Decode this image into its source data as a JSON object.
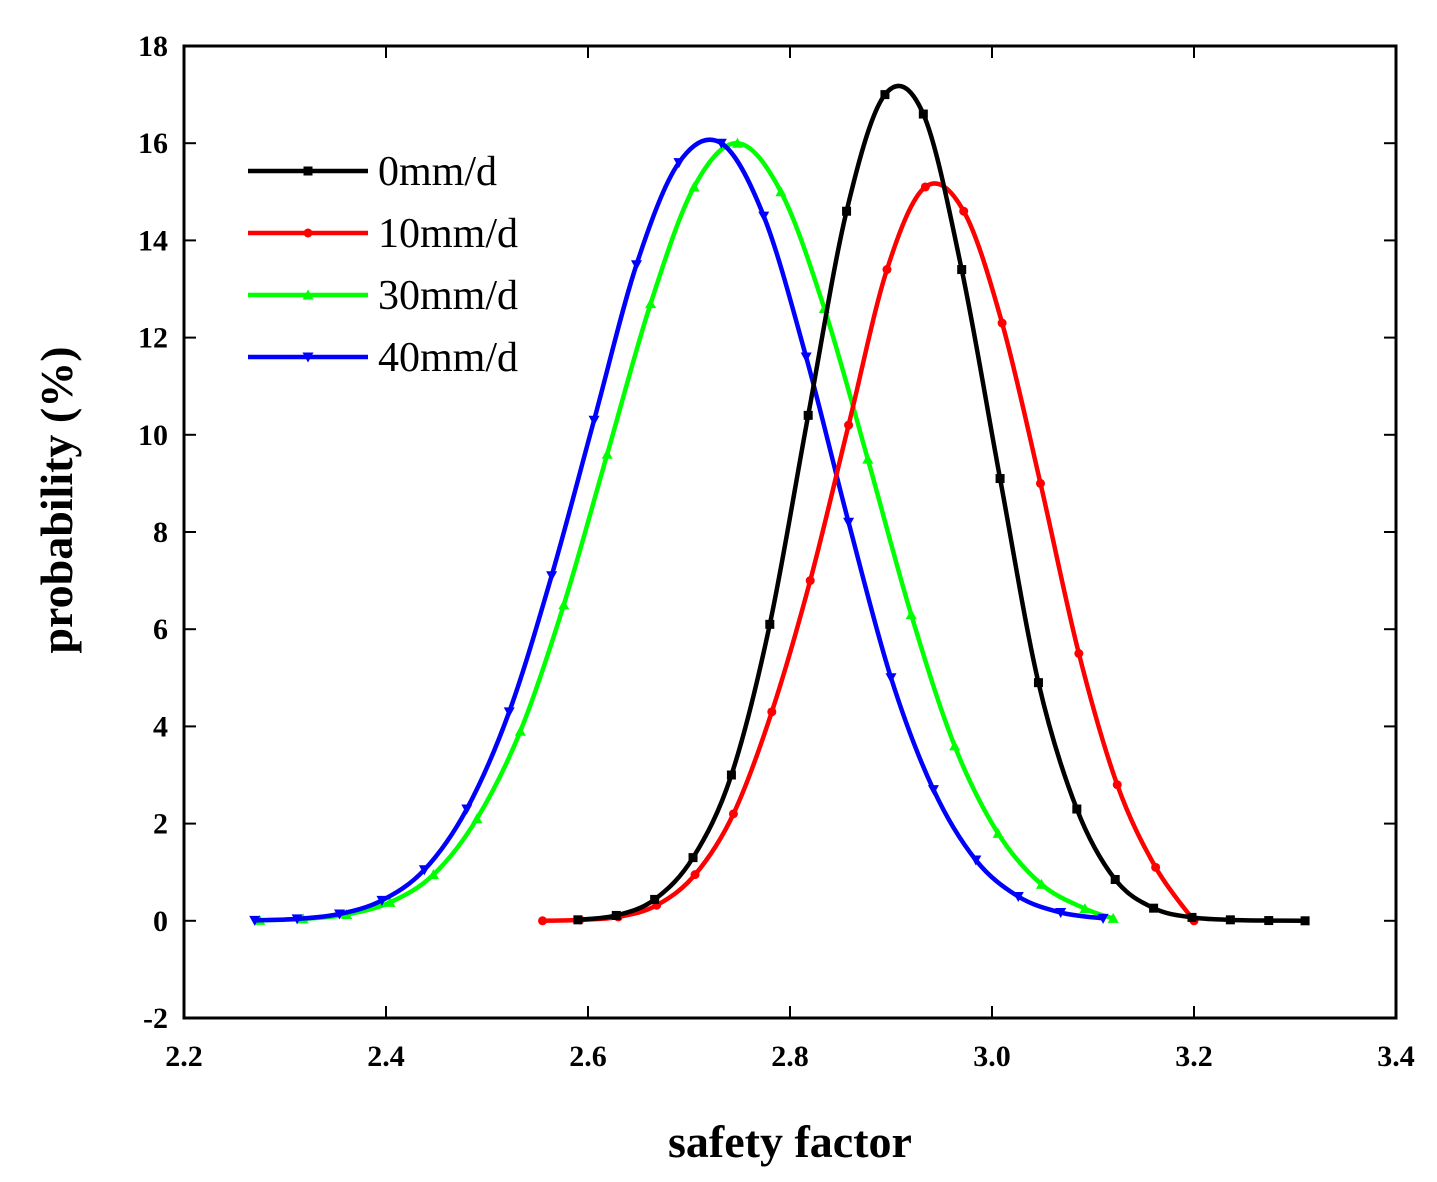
{
  "chart_data": {
    "type": "line",
    "title": "",
    "xlabel": "safety factor",
    "ylabel": "probability (%)",
    "xlim": [
      2.2,
      3.4
    ],
    "ylim": [
      -2,
      18
    ],
    "xticks": [
      2.2,
      2.4,
      2.6,
      2.8,
      3.0,
      3.2,
      3.4
    ],
    "xtick_labels": [
      "2.2",
      "2.4",
      "2.6",
      "2.8",
      "3.0",
      "3.2",
      "3.4"
    ],
    "yticks": [
      -2,
      0,
      2,
      4,
      6,
      8,
      10,
      12,
      14,
      16,
      18
    ],
    "ytick_labels": [
      "-2",
      "0",
      "2",
      "4",
      "6",
      "8",
      "10",
      "12",
      "14",
      "16",
      "18"
    ],
    "grid": false,
    "legend_position": "top-left",
    "series": [
      {
        "name": "0mm/d",
        "color": "#000000",
        "marker": "square",
        "x": [
          2.59,
          2.628,
          2.666,
          2.704,
          2.742,
          2.78,
          2.818,
          2.856,
          2.894,
          2.932,
          2.97,
          3.008,
          3.046,
          3.084,
          3.122,
          3.16,
          3.198,
          3.236,
          3.274,
          3.31
        ],
        "y": [
          0.02,
          0.11,
          0.44,
          1.3,
          3.0,
          6.1,
          10.4,
          14.6,
          17.0,
          16.6,
          13.4,
          9.1,
          4.9,
          2.3,
          0.85,
          0.26,
          0.07,
          0.02,
          0.005,
          0.0
        ]
      },
      {
        "name": "10mm/d",
        "color": "#ff0000",
        "marker": "circle",
        "x": [
          2.555,
          2.592,
          2.63,
          2.668,
          2.706,
          2.744,
          2.782,
          2.82,
          2.858,
          2.896,
          2.934,
          2.972,
          3.01,
          3.048,
          3.086,
          3.124,
          3.162,
          3.2
        ],
        "y": [
          0.0,
          0.02,
          0.08,
          0.32,
          0.95,
          2.2,
          4.3,
          7.0,
          10.2,
          13.4,
          15.1,
          14.6,
          12.3,
          9.0,
          5.5,
          2.8,
          1.1,
          0.0
        ]
      },
      {
        "name": "30mm/d",
        "color": "#00ff00",
        "marker": "triangle-up",
        "x": [
          2.275,
          2.318,
          2.361,
          2.404,
          2.447,
          2.49,
          2.533,
          2.576,
          2.619,
          2.662,
          2.705,
          2.748,
          2.791,
          2.834,
          2.877,
          2.92,
          2.963,
          3.006,
          3.049,
          3.092,
          3.12
        ],
        "y": [
          0.01,
          0.04,
          0.13,
          0.38,
          0.95,
          2.1,
          3.9,
          6.5,
          9.6,
          12.7,
          15.1,
          16.0,
          15.0,
          12.6,
          9.5,
          6.3,
          3.6,
          1.8,
          0.75,
          0.25,
          0.05
        ]
      },
      {
        "name": "40mm/d",
        "color": "#0000ff",
        "marker": "triangle-down",
        "x": [
          2.27,
          2.312,
          2.354,
          2.396,
          2.438,
          2.48,
          2.522,
          2.564,
          2.606,
          2.648,
          2.69,
          2.732,
          2.774,
          2.816,
          2.858,
          2.9,
          2.942,
          2.984,
          3.026,
          3.068,
          3.11
        ],
        "y": [
          0.01,
          0.04,
          0.14,
          0.42,
          1.05,
          2.3,
          4.3,
          7.1,
          10.3,
          13.5,
          15.6,
          16.0,
          14.5,
          11.6,
          8.2,
          5.0,
          2.7,
          1.25,
          0.5,
          0.17,
          0.05
        ]
      }
    ]
  }
}
